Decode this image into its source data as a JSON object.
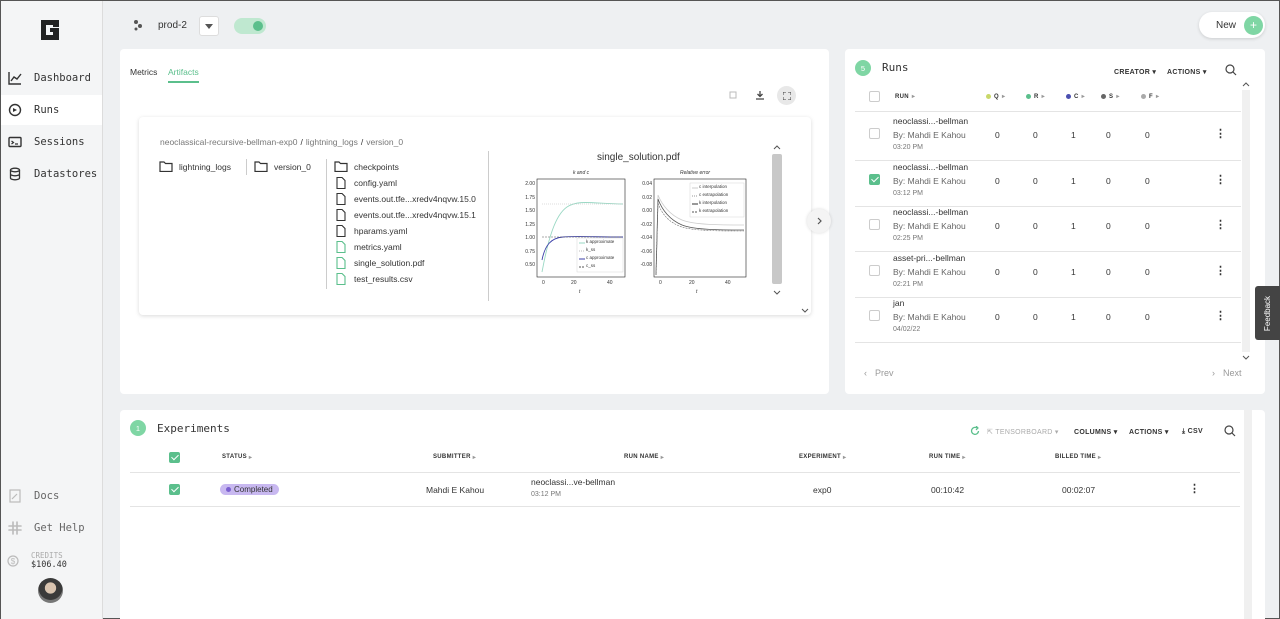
{
  "sidebar": {
    "items": [
      {
        "label": "Dashboard",
        "icon": "chart-line-icon"
      },
      {
        "label": "Runs",
        "icon": "runs-icon"
      },
      {
        "label": "Sessions",
        "icon": "sessions-icon"
      },
      {
        "label": "Datastores",
        "icon": "database-icon"
      }
    ],
    "docs": "Docs",
    "help": "Get Help",
    "credits_label": "CREDITS",
    "credits_value": "$106.40"
  },
  "topbar": {
    "project": "prod-2",
    "new_label": "New"
  },
  "artifacts": {
    "tabs": [
      "Metrics",
      "Artifacts"
    ],
    "active_tab": "Artifacts",
    "breadcrumb": [
      "neoclassical-recursive-bellman-exp0",
      "lightning_logs",
      "version_0"
    ],
    "col1": [
      "lightning_logs"
    ],
    "col2": [
      "version_0"
    ],
    "col3": [
      {
        "name": "checkpoints",
        "type": "folder"
      },
      {
        "name": "config.yaml",
        "type": "file"
      },
      {
        "name": "events.out.tfe...xredv4nqvw.15.0",
        "type": "file"
      },
      {
        "name": "events.out.tfe...xredv4nqvw.15.1",
        "type": "file"
      },
      {
        "name": "hparams.yaml",
        "type": "file"
      },
      {
        "name": "metrics.yaml",
        "type": "file-green"
      },
      {
        "name": "single_solution.pdf",
        "type": "file-green"
      },
      {
        "name": "test_results.csv",
        "type": "file-green"
      }
    ],
    "preview_title": "single_solution.pdf",
    "plot_left": {
      "title": "k and c",
      "xlabel": "t",
      "yticks": [
        "2.00",
        "1.75",
        "1.50",
        "1.25",
        "1.00",
        "0.75",
        "0.50"
      ],
      "xticks": [
        "0",
        "20",
        "40"
      ],
      "legend": [
        "k approximate",
        "k_ss",
        "c approximate",
        "c_ss"
      ]
    },
    "plot_right": {
      "title": "Relative error",
      "xlabel": "t",
      "yticks": [
        "0.04",
        "0.02",
        "0.00",
        "-0.02",
        "-0.04",
        "-0.06",
        "-0.08"
      ],
      "xticks": [
        "0",
        "20",
        "40"
      ],
      "legend": [
        "c interpolation",
        "c extrapolation",
        "k interpolation",
        "k extrapolation"
      ]
    }
  },
  "runs": {
    "title": "Runs",
    "count": "5",
    "creator_label": "CREATOR",
    "actions_label": "ACTIONS",
    "columns": [
      "RUN",
      "Q",
      "R",
      "C",
      "S",
      "F"
    ],
    "column_colors": [
      "#999",
      "#c9d86a",
      "#5bbf8c",
      "#4b4fb0",
      "#666",
      "#aaa"
    ],
    "rows": [
      {
        "name": "neoclassi...-bellman",
        "by": "By: Mahdi E Kahou",
        "time": "03:20 PM",
        "q": "0",
        "r": "0",
        "c": "1",
        "s": "0",
        "f": "0",
        "checked": false
      },
      {
        "name": "neoclassi...-bellman",
        "by": "By: Mahdi E Kahou",
        "time": "03:12 PM",
        "q": "0",
        "r": "0",
        "c": "1",
        "s": "0",
        "f": "0",
        "checked": true
      },
      {
        "name": "neoclassi...-bellman",
        "by": "By: Mahdi E Kahou",
        "time": "02:25 PM",
        "q": "0",
        "r": "0",
        "c": "1",
        "s": "0",
        "f": "0",
        "checked": false
      },
      {
        "name": "asset-pri...-bellman",
        "by": "By: Mahdi E Kahou",
        "time": "02:21 PM",
        "q": "0",
        "r": "0",
        "c": "1",
        "s": "0",
        "f": "0",
        "checked": false
      },
      {
        "name": "jan",
        "by": "By: Mahdi E Kahou",
        "time": "04/02/22",
        "q": "0",
        "r": "0",
        "c": "1",
        "s": "0",
        "f": "0",
        "checked": false
      }
    ],
    "prev": "Prev",
    "next": "Next",
    "feedback": "Feedback"
  },
  "experiments": {
    "title": "Experiments",
    "count": "1",
    "tensorboard": "TENSORBOARD",
    "columns_label": "COLUMNS",
    "actions_label": "ACTIONS",
    "csv_label": "CSV",
    "headers": [
      "STATUS",
      "SUBMITTER",
      "RUN NAME",
      "EXPERIMENT",
      "RUN TIME",
      "BILLED TIME"
    ],
    "row": {
      "status": "Completed",
      "submitter": "Mahdi E Kahou",
      "run_name": "neoclassi...ve-bellman",
      "run_time_sub": "03:12 PM",
      "experiment": "exp0",
      "run_time": "00:10:42",
      "billed_time": "00:02:07"
    }
  },
  "colors": {
    "accent": "#5bbf8c",
    "badge": "#c8b8f0"
  }
}
